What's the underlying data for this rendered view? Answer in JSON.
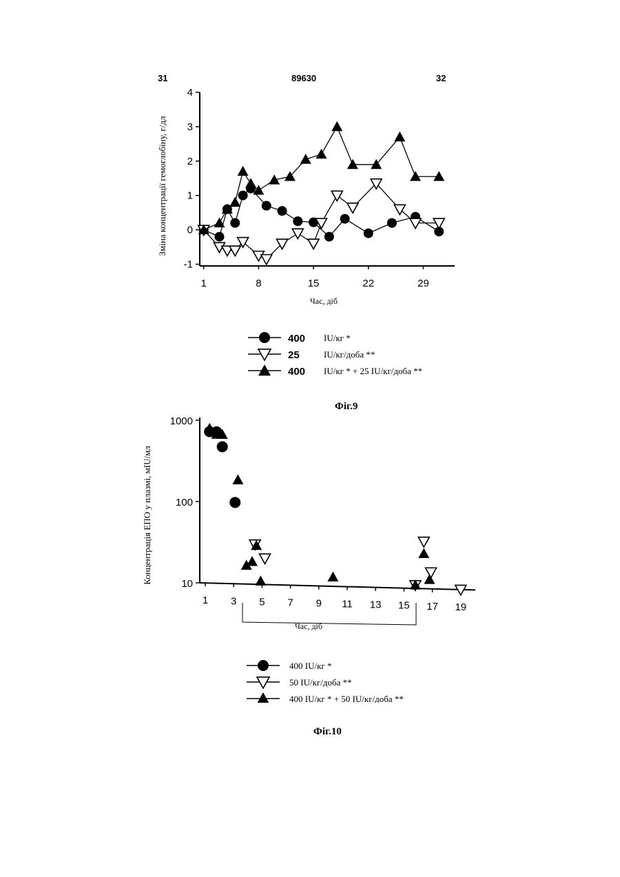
{
  "header": {
    "left": "31",
    "center": "89630",
    "right": "32"
  },
  "figures": [
    {
      "caption": "Фіг.9",
      "legend": [
        {
          "num": "400",
          "unit": "IU/кг *",
          "marker": "circle"
        },
        {
          "num": "25",
          "unit": "IU/кг/доба **",
          "marker": "tri-down"
        },
        {
          "num": "400",
          "unit": "IU/кг * + 25 IU/кг/доба **",
          "marker": "tri-up"
        }
      ]
    },
    {
      "caption": "Фіг.10",
      "legend": [
        {
          "num": "",
          "unit": "400 IU/кг *",
          "marker": "circle"
        },
        {
          "num": "",
          "unit": "50 IU/кг/доба **",
          "marker": "tri-down"
        },
        {
          "num": "",
          "unit": "400 IU/кг * + 50 IU/кг/доба **",
          "marker": "tri-up"
        }
      ]
    }
  ],
  "chart_data": [
    {
      "type": "line",
      "ylabel": "Зміна концентрації гемоглобіну, г/дл",
      "xlabel": "Час, діб",
      "xticks": [
        1,
        8,
        15,
        22,
        29
      ],
      "yticks": [
        -1,
        0,
        1,
        2,
        3,
        4
      ],
      "ytick_labels": [
        "-1",
        "0",
        "1",
        "2",
        "3",
        "4"
      ],
      "xlim": [
        0.5,
        33
      ],
      "ylim": [
        -1.05,
        4
      ],
      "series": [
        {
          "name": "400 IU/кг *",
          "marker": "circle",
          "x": [
            1,
            3,
            4,
            5,
            6,
            7,
            9,
            11,
            13,
            15,
            17,
            19,
            22,
            25,
            28,
            31
          ],
          "y": [
            0.0,
            -0.2,
            0.6,
            0.2,
            1.0,
            1.2,
            0.7,
            0.55,
            0.25,
            0.22,
            -0.2,
            0.32,
            -0.1,
            0.2,
            0.38,
            -0.05
          ]
        },
        {
          "name": "25 IU/кг/доба **",
          "marker": "tri-down",
          "x": [
            1,
            3,
            4,
            5,
            6,
            8,
            9,
            11,
            13,
            15,
            16,
            18,
            20,
            23,
            26,
            28,
            31
          ],
          "y": [
            0.0,
            -0.5,
            -0.6,
            -0.6,
            -0.35,
            -0.75,
            -0.85,
            -0.4,
            -0.1,
            -0.4,
            0.2,
            1.0,
            0.65,
            1.35,
            0.6,
            0.2,
            0.2
          ]
        },
        {
          "name": "400 IU/кг * + 25 IU/кг/доба **",
          "marker": "tri-up",
          "x": [
            1,
            3,
            4,
            5,
            6,
            7,
            8,
            10,
            12,
            14,
            16,
            18,
            20,
            23,
            26,
            28,
            31
          ],
          "y": [
            0.0,
            0.2,
            0.6,
            0.8,
            1.7,
            1.35,
            1.15,
            1.45,
            1.55,
            2.05,
            2.2,
            3.0,
            1.9,
            1.9,
            2.7,
            1.55,
            1.55
          ]
        }
      ]
    },
    {
      "type": "scatter",
      "yscale": "log",
      "ylabel": "Концентрація ЕПО у плазмі, мIU/мл",
      "xlabel": "Час, діб",
      "xticks": [
        1,
        3,
        5,
        7,
        9,
        11,
        13,
        15,
        17,
        19
      ],
      "yticks": [
        10,
        100,
        1000
      ],
      "ytick_labels": [
        "10",
        "100",
        "1000"
      ],
      "xlim": [
        1,
        19.5
      ],
      "ylim": [
        10,
        1000
      ],
      "series": [
        {
          "name": "400 IU/кг *",
          "marker": "circle",
          "x": [
            1.3,
            1.8,
            2.2,
            3.1
          ],
          "y": [
            730,
            730,
            480,
            100
          ]
        },
        {
          "name": "50 IU/кг/доба **",
          "marker": "tri-down",
          "x": [
            4.5,
            5.2,
            15.8,
            16.4,
            16.9,
            19.0
          ],
          "y": [
            31,
            21,
            11,
            38,
            16,
            10
          ]
        },
        {
          "name": "400 IU/кг * + 50 IU/кг/доба **",
          "marker": "tri-up",
          "x": [
            1.3,
            1.8,
            2.2,
            3.3,
            3.9,
            4.3,
            4.6,
            4.9,
            10.0,
            15.8,
            16.4,
            16.8
          ],
          "y": [
            800,
            680,
            680,
            190,
            17,
            19,
            30,
            11,
            13,
            11,
            27,
            13
          ]
        }
      ]
    }
  ]
}
